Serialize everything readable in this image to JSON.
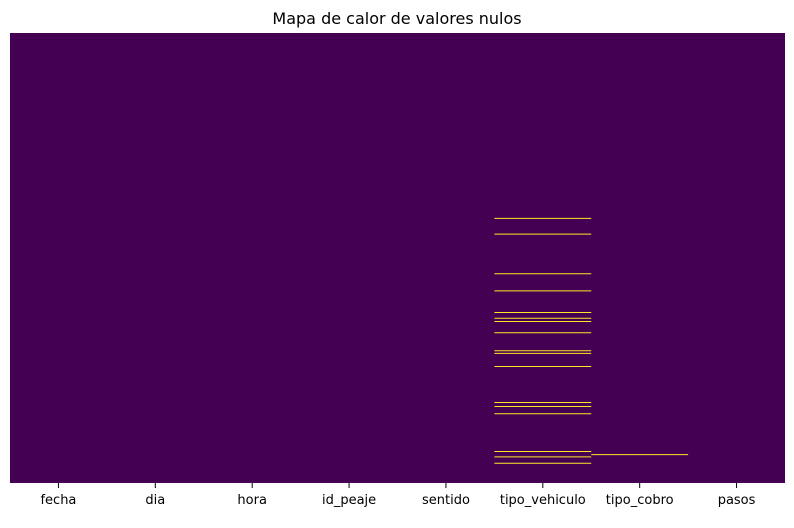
{
  "chart_data": {
    "type": "heatmap",
    "title": "Mapa de calor de valores nulos",
    "columns": [
      "fecha",
      "dia",
      "hora",
      "id_peaje",
      "sentido",
      "tipo_vehiculo",
      "tipo_cobro",
      "pasos"
    ],
    "value_domain": [
      0,
      1
    ],
    "colors": {
      "not_null": "#440154",
      "null": "#fde725"
    },
    "colorbar": false,
    "null_rows": {
      "fecha": [],
      "dia": [],
      "hora": [],
      "id_peaje": [],
      "sentido": [],
      "tipo_vehiculo": [
        0.412,
        0.447,
        0.535,
        0.573,
        0.621,
        0.634,
        0.641,
        0.666,
        0.706,
        0.712,
        0.741,
        0.821,
        0.83,
        0.846,
        0.93,
        0.942,
        0.956
      ],
      "tipo_cobro": [
        0.937
      ],
      "pasos": []
    },
    "xlabel": "",
    "ylabel": ""
  }
}
